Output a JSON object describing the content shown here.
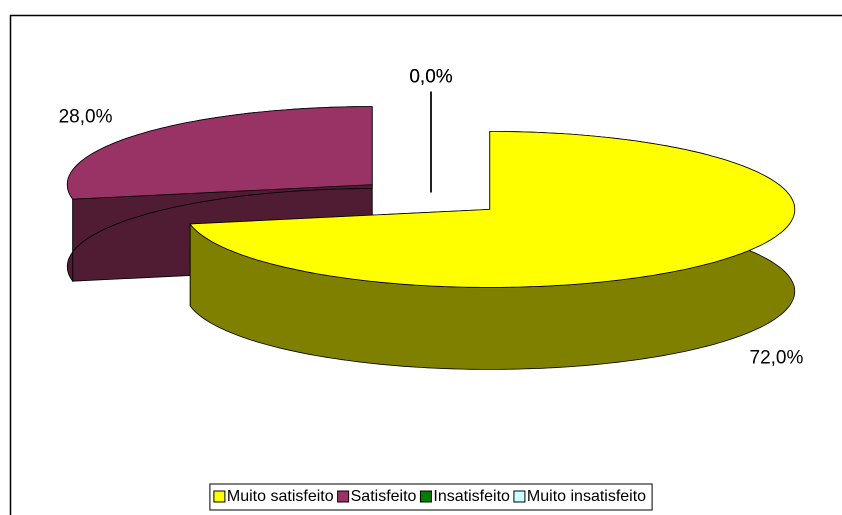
{
  "chart_data": {
    "type": "pie3d",
    "categories": [
      "Muito satisfeito",
      "Satisfeito",
      "Insatisfeito",
      "Muito insatisfeito"
    ],
    "values": [
      72,
      28,
      0,
      0
    ],
    "value_labels": [
      "72,0%",
      "28,0%",
      "0,0%",
      "0,0%"
    ],
    "colors": [
      "#ffff00",
      "#993366",
      "#008000",
      "#ccffff"
    ],
    "side_colors": [
      "#808000",
      "#4f1c34",
      "#004000",
      "#668080"
    ],
    "legend": "bottom"
  }
}
